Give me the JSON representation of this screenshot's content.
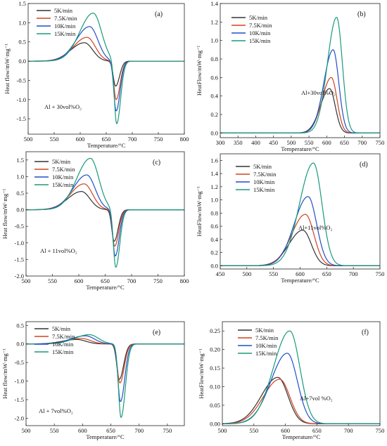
{
  "colors": {
    "5K/min": "#333333",
    "7.5K/min": "#d0431f",
    "10K/min": "#1f4fc8",
    "15K/min": "#1a9a7a"
  },
  "chart_data": [
    {
      "panel": "(a)",
      "type": "line",
      "xlabel": "Temperature/°C",
      "ylabel": "Heat flow/mW·mg⁻¹",
      "xlim": [
        500,
        800
      ],
      "ylim": [
        -1.9,
        1.5
      ],
      "xticks": [
        500,
        550,
        600,
        650,
        700,
        750,
        800
      ],
      "yticks": [
        -1.5,
        -1.0,
        -0.5,
        0.0,
        0.5,
        1.0,
        1.5
      ],
      "ytick_labels": [
        "-1.5",
        "-1.0",
        "-0.5",
        "0.0",
        "0.5",
        "1.0",
        "1.5"
      ],
      "legend_position": "top-left",
      "annotation": "Al + 30vol%O₂",
      "series": [
        {
          "name": "5K/min",
          "peak_x": 608,
          "peak_y": 0.48,
          "valley_x": 668,
          "valley_y": -0.65
        },
        {
          "name": "7.5K/min",
          "peak_x": 613,
          "peak_y": 0.62,
          "valley_x": 669,
          "valley_y": -1.0
        },
        {
          "name": "10K/min",
          "peak_x": 618,
          "peak_y": 0.9,
          "valley_x": 669,
          "valley_y": -1.3
        },
        {
          "name": "15K/min",
          "peak_x": 625,
          "peak_y": 1.25,
          "valley_x": 670,
          "valley_y": -1.65
        }
      ]
    },
    {
      "panel": "(b)",
      "type": "line",
      "xlabel": "Temperature/°C",
      "ylabel": "HeatFlow/mW·mg⁻¹",
      "xlim": [
        300,
        750
      ],
      "ylim": [
        -0.05,
        1.4
      ],
      "xticks": [
        300,
        350,
        400,
        450,
        500,
        550,
        600,
        650,
        700,
        750
      ],
      "yticks": [
        0.0,
        0.2,
        0.4,
        0.6,
        0.8,
        1.0,
        1.2,
        1.4
      ],
      "ytick_labels": [
        "0.0",
        "0.2",
        "0.4",
        "0.6",
        "0.8",
        "1.0",
        "1.2",
        "1.4"
      ],
      "legend_position": "top-left",
      "annotation": "Al+30vol%O₂",
      "series": [
        {
          "name": "5K/min",
          "peak_x": 608,
          "peak_y": 0.48
        },
        {
          "name": "7.5K/min",
          "peak_x": 613,
          "peak_y": 0.6
        },
        {
          "name": "10K/min",
          "peak_x": 618,
          "peak_y": 0.9
        },
        {
          "name": "15K/min",
          "peak_x": 628,
          "peak_y": 1.25
        }
      ]
    },
    {
      "panel": "(c)",
      "type": "line",
      "xlabel": "Temperature/°C",
      "ylabel": "Heat flow/mW·mg⁻¹",
      "xlim": [
        500,
        800
      ],
      "ylim": [
        -2.0,
        1.75
      ],
      "xticks": [
        500,
        550,
        600,
        650,
        700,
        750,
        800
      ],
      "yticks": [
        -2.0,
        -1.5,
        -1.0,
        -0.5,
        0.0,
        0.5,
        1.0,
        1.5
      ],
      "ytick_labels": [
        "-2.0",
        "-1.5",
        "-1.0",
        "-0.5",
        "0.0",
        "0.5",
        "1.0",
        "1.5"
      ],
      "legend_position": "top-left",
      "annotation": "Al + 11vol%O₂",
      "series": [
        {
          "name": "5K/min",
          "peak_x": 605,
          "peak_y": 0.55,
          "valley_x": 667,
          "valley_y": -0.95
        },
        {
          "name": "7.5K/min",
          "peak_x": 610,
          "peak_y": 0.78,
          "valley_x": 668,
          "valley_y": -1.1
        },
        {
          "name": "10K/min",
          "peak_x": 615,
          "peak_y": 1.05,
          "valley_x": 669,
          "valley_y": -1.4
        },
        {
          "name": "15K/min",
          "peak_x": 622,
          "peak_y": 1.55,
          "valley_x": 670,
          "valley_y": -1.75
        }
      ]
    },
    {
      "panel": "(d)",
      "type": "line",
      "xlabel": "Temperature/°C",
      "ylabel": "HeatFlow/mW·mg⁻¹",
      "xlim": [
        450,
        750
      ],
      "ylim": [
        -0.05,
        1.7
      ],
      "xticks": [
        450,
        500,
        550,
        600,
        650,
        700,
        750
      ],
      "yticks": [
        0.0,
        0.2,
        0.4,
        0.6,
        0.8,
        1.0,
        1.2,
        1.4,
        1.6
      ],
      "ytick_labels": [
        "0.0",
        "0.2",
        "0.4",
        "0.6",
        "0.8",
        "1.0",
        "1.2",
        "1.4",
        "1.6"
      ],
      "legend_position": "top-left",
      "annotation": "Al+11vol%O₂",
      "series": [
        {
          "name": "5K/min",
          "peak_x": 605,
          "peak_y": 0.54
        },
        {
          "name": "7.5K/min",
          "peak_x": 610,
          "peak_y": 0.78
        },
        {
          "name": "10K/min",
          "peak_x": 615,
          "peak_y": 1.05
        },
        {
          "name": "15K/min",
          "peak_x": 625,
          "peak_y": 1.56
        }
      ]
    },
    {
      "panel": "(e)",
      "type": "line",
      "xlabel": "Temperature/°C",
      "ylabel": "Heat flow/mW·mg⁻¹",
      "xlim": [
        500,
        780
      ],
      "ylim": [
        -2.2,
        0.6
      ],
      "xticks": [
        500,
        550,
        600,
        650,
        700,
        750
      ],
      "yticks": [
        -2.0,
        -1.5,
        -1.0,
        -0.5,
        0.0,
        0.5
      ],
      "ytick_labels": [
        "-2.0",
        "-1.5",
        "-1.0",
        "-0.5",
        "0.0",
        "0.5"
      ],
      "legend_position": "top-left",
      "annotation": "Al + 7vol%O₂",
      "series": [
        {
          "name": "5K/min",
          "peak_x": 590,
          "peak_y": 0.12,
          "valley_x": 665,
          "valley_y": -0.95
        },
        {
          "name": "7.5K/min",
          "peak_x": 598,
          "peak_y": 0.15,
          "valley_x": 666,
          "valley_y": -1.05
        },
        {
          "name": "10K/min",
          "peak_x": 605,
          "peak_y": 0.22,
          "valley_x": 667,
          "valley_y": -1.55
        },
        {
          "name": "15K/min",
          "peak_x": 612,
          "peak_y": 0.25,
          "valley_x": 668,
          "valley_y": -1.98
        }
      ]
    },
    {
      "panel": "(f)",
      "type": "line",
      "xlabel": "Temperature/°C",
      "ylabel": "HeatFlow/mW·mg⁻¹",
      "xlim": [
        500,
        750
      ],
      "ylim": [
        -0.005,
        0.275
      ],
      "xticks": [
        500,
        550,
        600,
        650,
        700,
        750
      ],
      "yticks": [
        0.0,
        0.05,
        0.1,
        0.15,
        0.2,
        0.25
      ],
      "ytick_labels": [
        "0.00",
        "0.05",
        "0.10",
        "0.15",
        "0.20",
        "0.25"
      ],
      "legend_position": "top-left",
      "annotation": "Al+7vol %O₂",
      "series": [
        {
          "name": "5K/min",
          "peak_x": 588,
          "peak_y": 0.125
        },
        {
          "name": "7.5K/min",
          "peak_x": 591,
          "peak_y": 0.12
        },
        {
          "name": "10K/min",
          "peak_x": 603,
          "peak_y": 0.19
        },
        {
          "name": "15K/min",
          "peak_x": 607,
          "peak_y": 0.25
        }
      ]
    }
  ]
}
